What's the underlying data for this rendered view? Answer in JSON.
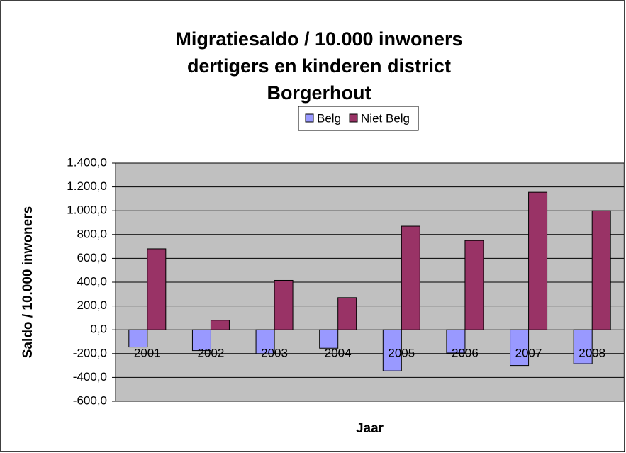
{
  "chart_data": {
    "type": "bar",
    "title": "Migratiesaldo / 10.000 inwoners dertigers en kinderen district Borgerhout",
    "x_label": "Jaar",
    "y_label": "Saldo / 10.000 inwoners",
    "categories": [
      "2001",
      "2002",
      "2003",
      "2004",
      "2005",
      "2006",
      "2007",
      "2008"
    ],
    "series": [
      {
        "name": "Belg",
        "color": "#9999ff",
        "values": [
          -145,
          -175,
          -200,
          -155,
          -345,
          -195,
          -300,
          -285
        ]
      },
      {
        "name": "Niet Belg",
        "color": "#993366",
        "values": [
          680,
          80,
          415,
          270,
          870,
          750,
          1155,
          1000
        ]
      }
    ],
    "ylim": [
      -600,
      1400
    ],
    "yticks": [
      {
        "value": -600,
        "label": "-600,0"
      },
      {
        "value": -400,
        "label": "-400,0"
      },
      {
        "value": -200,
        "label": "-200,0"
      },
      {
        "value": 0,
        "label": "0,0"
      },
      {
        "value": 200,
        "label": "200,0"
      },
      {
        "value": 400,
        "label": "400,0"
      },
      {
        "value": 600,
        "label": "600,0"
      },
      {
        "value": 800,
        "label": "800,0"
      },
      {
        "value": 1000,
        "label": "1.000,0"
      },
      {
        "value": 1200,
        "label": "1.200,0"
      },
      {
        "value": 1400,
        "label": "1.400,0"
      }
    ],
    "grid": true,
    "legend": "top",
    "plot_background": "#c0c0c0"
  }
}
